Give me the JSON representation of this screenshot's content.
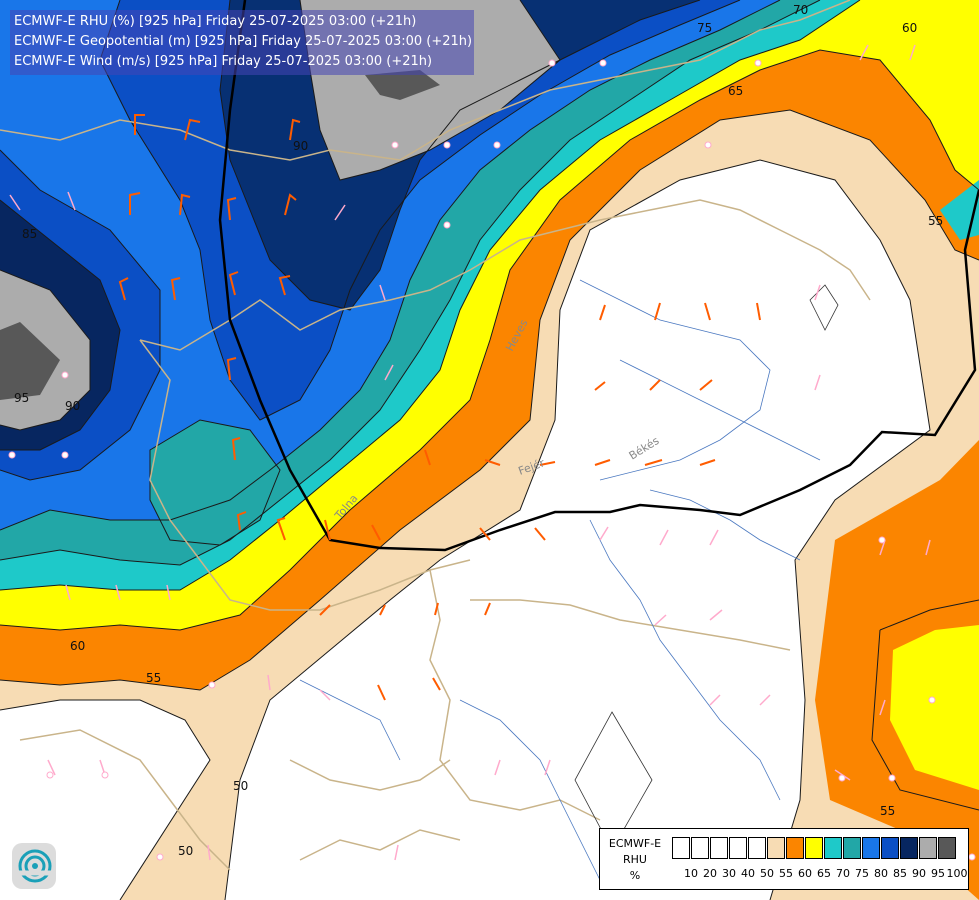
{
  "header": {
    "lines": [
      "ECMWF-E RHU (%) [925 hPa] Friday 25-07-2025 03:00 (+21h)",
      "ECMWF-E Geopotential (m) [925 hPa] Friday 25-07-2025 03:00 (+21h)",
      "ECMWF-E Wind (m/s) [925 hPa] Friday 25-07-2025 03:00 (+21h)"
    ]
  },
  "colors": {
    "white": "#ffffff",
    "beige": "#f7dcb4",
    "orange": "#fb8500",
    "yellow": "#ffff00",
    "cyan": "#1ec9c9",
    "teal": "#22a7a7",
    "blue": "#1976e9",
    "mid_blue": "#0b4fc5",
    "navy": "#073073",
    "dark_navy": "#072660",
    "grey": "#acacac",
    "dark_grey": "#585858",
    "contour": "#1a1a1a",
    "border": "#c9b48a",
    "river": "#4a78c0",
    "geopotential": "#000000",
    "barb_orange": "#ff5c00",
    "barb_pink": "#ffaacc"
  },
  "contour_labels": [
    {
      "text": "75"
    },
    {
      "text": "70"
    },
    {
      "text": "60"
    },
    {
      "text": "65"
    },
    {
      "text": "90"
    },
    {
      "text": "85"
    },
    {
      "text": "95"
    },
    {
      "text": "90"
    },
    {
      "text": "55"
    },
    {
      "text": "60"
    },
    {
      "text": "55"
    },
    {
      "text": "50"
    },
    {
      "text": "50"
    },
    {
      "text": "55"
    }
  ],
  "place_labels": [
    {
      "text": "Heves"
    },
    {
      "text": "Békés"
    },
    {
      "text": "Tolna"
    },
    {
      "text": "Fejér"
    }
  ],
  "legend": {
    "title_lines": [
      "ECMWF-E",
      "RHU",
      "%"
    ],
    "swatch_colors": [
      "#ffffff",
      "#ffffff",
      "#ffffff",
      "#ffffff",
      "#ffffff",
      "#f7dcb4",
      "#fb8500",
      "#ffff00",
      "#1ec9c9",
      "#22a7a7",
      "#1976e9",
      "#0b4fc5",
      "#072660",
      "#acacac",
      "#585858"
    ],
    "ticks": [
      "10",
      "20",
      "30",
      "40",
      "50",
      "55",
      "60",
      "65",
      "70",
      "75",
      "80",
      "85",
      "90",
      "95",
      "100"
    ]
  },
  "logo": {
    "icon": "ecmwf-logo-icon"
  }
}
